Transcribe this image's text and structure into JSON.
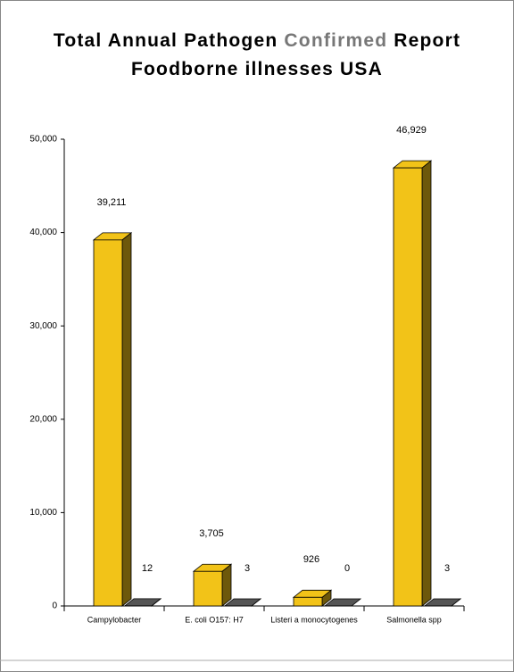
{
  "chart_data": {
    "type": "bar3d",
    "title_parts": [
      "Total Annual Pathogen",
      "Confirmed",
      "Report"
    ],
    "subtitle": "Foodborne illnesses USA",
    "categories": [
      "Campylobacter",
      "E. coli O157: H7",
      "Listeri a monocytogenes",
      "Salmonella spp"
    ],
    "series": [
      {
        "color": "#f2c318",
        "values": [
          39211,
          3705,
          926,
          46929
        ],
        "value_labels": [
          "39,211",
          "3,705",
          "926",
          "46,929"
        ]
      },
      {
        "color": "#555555",
        "values": [
          12,
          3,
          0,
          3
        ]
      }
    ],
    "ylim": [
      0,
      50000
    ],
    "yticks": [
      0,
      {
        "value": 10000,
        "label": "10,000"
      },
      {
        "value": 20000,
        "label": "20,000"
      },
      {
        "value": 30000,
        "label": "30,000"
      },
      {
        "value": 40000,
        "label": "40,000"
      },
      {
        "value": 50000,
        "label": "50,000"
      }
    ]
  }
}
